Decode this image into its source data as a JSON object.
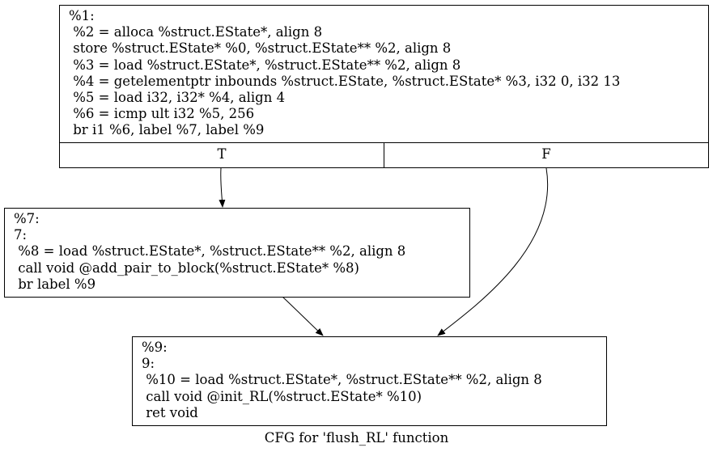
{
  "blocks": {
    "entry": {
      "lines": [
        "%1:",
        " %2 = alloca %struct.EState*, align 8",
        " store %struct.EState* %0, %struct.EState** %2, align 8",
        " %3 = load %struct.EState*, %struct.EState** %2, align 8",
        " %4 = getelementptr inbounds %struct.EState, %struct.EState* %3, i32 0, i32 13",
        " %5 = load i32, i32* %4, align 4",
        " %6 = icmp ult i32 %5, 256",
        " br i1 %6, label %7, label %9"
      ],
      "ports": [
        "T",
        "F"
      ]
    },
    "b7": {
      "lines": [
        "%7:",
        "7:",
        " %8 = load %struct.EState*, %struct.EState** %2, align 8",
        " call void @add_pair_to_block(%struct.EState* %8)",
        " br label %9"
      ]
    },
    "b9": {
      "lines": [
        "%9:",
        "9:",
        " %10 = load %struct.EState*, %struct.EState** %2, align 8",
        " call void @init_RL(%struct.EState* %10)",
        " ret void"
      ]
    }
  },
  "edges": [
    {
      "from": "entry:T",
      "to": "b7"
    },
    {
      "from": "entry:F",
      "to": "b9"
    },
    {
      "from": "b7",
      "to": "b9"
    }
  ],
  "caption": "CFG for 'flush_RL' function"
}
